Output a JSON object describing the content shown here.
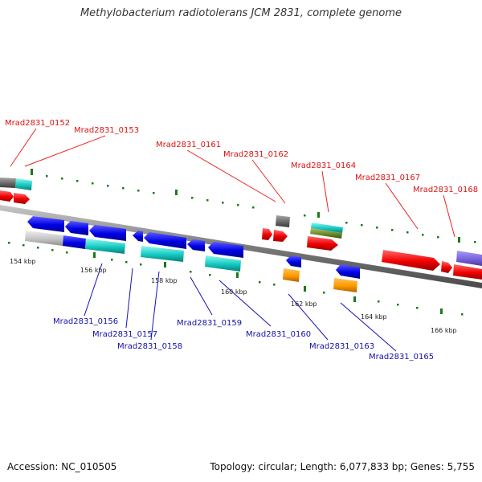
{
  "title": "Methylobacterium radiotolerans JCM 2831, complete genome",
  "footer": {
    "accession": "Accession: NC_010505",
    "summary": "Topology: circular; Length: 6,077,833 bp; Genes: 5,755"
  },
  "colors": {
    "upper_label": "#dd1111",
    "lower_label": "#1111aa",
    "tick": "#1a7a1a",
    "backbone": "#7a7a7a"
  },
  "scale_labels": [
    "154 kbp",
    "156 kbp",
    "158 kbp",
    "160 kbp",
    "162 kbp",
    "164 kbp",
    "166 kbp"
  ],
  "upper_labels": [
    "Mrad2831_0152",
    "Mrad2831_0153",
    "Mrad2831_0161",
    "Mrad2831_0162",
    "Mrad2831_0164",
    "Mrad2831_0167",
    "Mrad2831_0168"
  ],
  "lower_labels": [
    "Mrad2831_0156",
    "Mrad2831_0157",
    "Mrad2831_0158",
    "Mrad2831_0159",
    "Mrad2831_0160",
    "Mrad2831_0163",
    "Mrad2831_0165"
  ]
}
